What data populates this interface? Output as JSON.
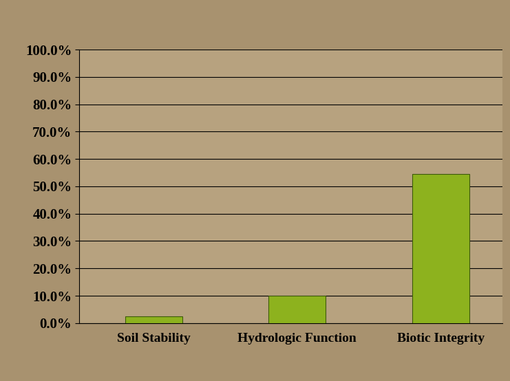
{
  "chart_data": {
    "type": "bar",
    "categories": [
      "Soil Stability",
      "Hydrologic Function",
      "Biotic Integrity"
    ],
    "values": [
      2.5,
      10,
      54.5
    ],
    "color": "#8db21e",
    "ylim": [
      0,
      100
    ],
    "yticks": [
      {
        "value": 0,
        "label": "0.0%"
      },
      {
        "value": 10,
        "label": "10.0%"
      },
      {
        "value": 20,
        "label": "20.0%"
      },
      {
        "value": 30,
        "label": "30.0%"
      },
      {
        "value": 40,
        "label": "40.0%"
      },
      {
        "value": 50,
        "label": "50.0%"
      },
      {
        "value": 60,
        "label": "60.0%"
      },
      {
        "value": 70,
        "label": "70.0%"
      },
      {
        "value": 80,
        "label": "80.0%"
      },
      {
        "value": 90,
        "label": "90.0%"
      },
      {
        "value": 100,
        "label": "100.0%"
      }
    ],
    "grid": true
  }
}
